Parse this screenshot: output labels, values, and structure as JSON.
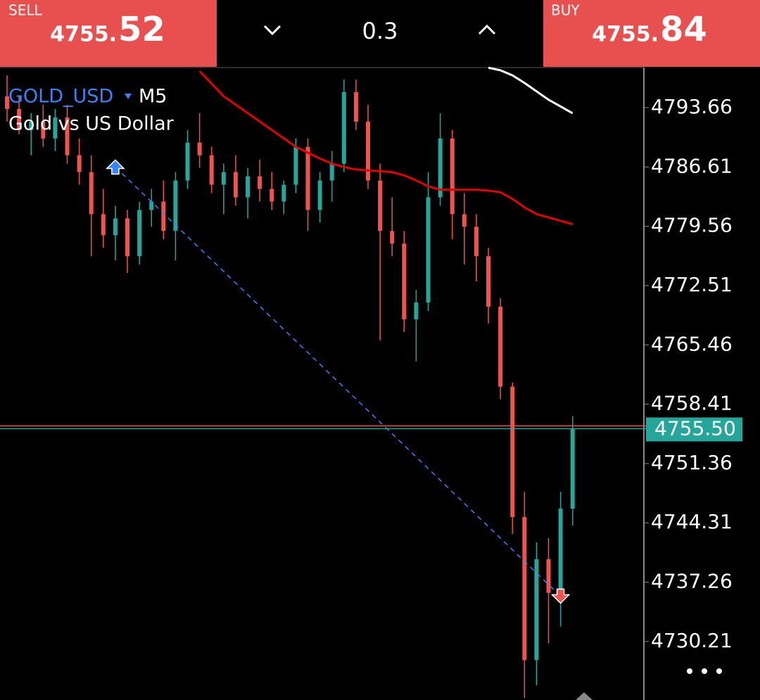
{
  "header": {
    "sell": {
      "label": "SELL",
      "price_main": "4755.",
      "price_pips": "52"
    },
    "volume": "0.3",
    "buy": {
      "label": "BUY",
      "price_main": "4755.",
      "price_pips": "84"
    }
  },
  "chart_data": {
    "type": "candlestick",
    "symbol": "GOLD_USD",
    "timeframe": "M5",
    "subtitle": "Gold vs US Dollar",
    "up_color": "#26a69a",
    "down_color": "#ef5350",
    "open": [
      4795.0,
      4793.5,
      4791.0,
      4792.0,
      4790.0,
      4792.5,
      4788.0,
      4786.0,
      4781.0,
      4778.5,
      4780.5,
      4776.0,
      4781.5,
      4782.5,
      4779.0,
      4785.0,
      4789.5,
      4788.0,
      4784.5,
      4786.0,
      4783.0,
      4785.5,
      4784.0,
      4782.5,
      4784.5,
      4789.0,
      4781.5,
      4785.0,
      4787.0,
      4795.5,
      4792.0,
      4785.0,
      4779.0,
      4777.5,
      4768.5,
      4770.5,
      4783.0,
      4790.0,
      4781.0,
      4779.5,
      4776.0,
      4770.0,
      4760.5,
      4745.0,
      4728.0,
      4740.0,
      4736.0,
      4746.0
    ],
    "high": [
      4797.5,
      4795.0,
      4793.0,
      4794.0,
      4793.5,
      4794.0,
      4790.0,
      4788.0,
      4784.0,
      4782.0,
      4781.5,
      4782.5,
      4784.0,
      4785.0,
      4786.0,
      4791.0,
      4793.0,
      4789.0,
      4787.0,
      4788.0,
      4786.5,
      4787.5,
      4786.0,
      4785.0,
      4790.0,
      4790.0,
      4786.0,
      4788.5,
      4797.0,
      4797.0,
      4794.0,
      4787.0,
      4783.0,
      4779.0,
      4772.0,
      4786.0,
      4793.0,
      4791.0,
      4783.5,
      4781.0,
      4777.0,
      4771.0,
      4761.0,
      4748.0,
      4742.0,
      4742.5,
      4748.0,
      4757.0
    ],
    "low": [
      4792.0,
      4790.5,
      4788.0,
      4789.0,
      4788.5,
      4787.0,
      4784.5,
      4776.0,
      4777.0,
      4775.5,
      4774.0,
      4775.0,
      4779.5,
      4778.0,
      4775.5,
      4784.0,
      4786.5,
      4783.5,
      4781.0,
      4782.0,
      4780.5,
      4782.5,
      4781.5,
      4781.0,
      4783.5,
      4779.0,
      4780.0,
      4782.5,
      4786.0,
      4791.0,
      4784.0,
      4766.0,
      4776.0,
      4767.0,
      4763.5,
      4769.5,
      4782.0,
      4778.0,
      4775.0,
      4773.0,
      4768.0,
      4759.0,
      4743.0,
      4723.5,
      4725.0,
      4730.0,
      4732.0,
      4744.0
    ],
    "close": [
      4793.5,
      4791.0,
      4792.0,
      4790.0,
      4792.5,
      4788.0,
      4786.0,
      4781.0,
      4778.5,
      4780.5,
      4776.0,
      4781.5,
      4782.5,
      4779.0,
      4785.0,
      4789.5,
      4788.0,
      4784.5,
      4786.0,
      4783.0,
      4785.5,
      4784.0,
      4782.5,
      4784.5,
      4789.0,
      4781.5,
      4785.0,
      4787.0,
      4795.5,
      4792.0,
      4785.0,
      4779.0,
      4777.5,
      4768.5,
      4770.5,
      4783.0,
      4790.0,
      4781.0,
      4779.5,
      4776.0,
      4770.0,
      4760.5,
      4745.0,
      4728.0,
      4740.0,
      4736.0,
      4746.0,
      4755.5
    ],
    "series": [
      {
        "color": "#e00000",
        "values": [
          null,
          null,
          null,
          null,
          null,
          null,
          null,
          null,
          null,
          null,
          null,
          null,
          null,
          null,
          null,
          null,
          4798.0,
          4796.5,
          4795.0,
          4794.0,
          4793.0,
          4792.0,
          4791.0,
          4790.0,
          4789.0,
          4788.3,
          4787.6,
          4787.0,
          4786.6,
          4786.3,
          4786.2,
          4786.1,
          4786.0,
          4785.6,
          4785.0,
          4784.3,
          4783.9,
          4783.9,
          4783.9,
          4783.9,
          4783.8,
          4783.6,
          4782.8,
          4781.8,
          4781.0,
          4780.6,
          4780.2,
          4779.8
        ]
      },
      {
        "color": "#ffffff",
        "values": [
          null,
          null,
          null,
          null,
          null,
          null,
          null,
          null,
          null,
          null,
          null,
          null,
          null,
          null,
          null,
          null,
          null,
          null,
          null,
          null,
          null,
          null,
          null,
          null,
          null,
          null,
          null,
          null,
          null,
          null,
          null,
          null,
          null,
          null,
          null,
          null,
          null,
          null,
          null,
          null,
          4798.4,
          4798.1,
          4797.5,
          4796.6,
          4795.6,
          4794.6,
          4793.8,
          4793.0
        ]
      }
    ],
    "trade": {
      "entry": {
        "index": 9,
        "price": 4786.6
      },
      "exit": {
        "index": 46,
        "price": 4735.6
      }
    },
    "ask_line": 4755.84,
    "last_price": {
      "value": 4755.5,
      "label": "4755.50"
    },
    "ylim": [
      4723.26,
      4798.51
    ],
    "yticks": [
      4793.66,
      4786.61,
      4779.56,
      4772.51,
      4765.46,
      4758.41,
      4751.36,
      4744.31,
      4737.26,
      4730.21
    ]
  }
}
